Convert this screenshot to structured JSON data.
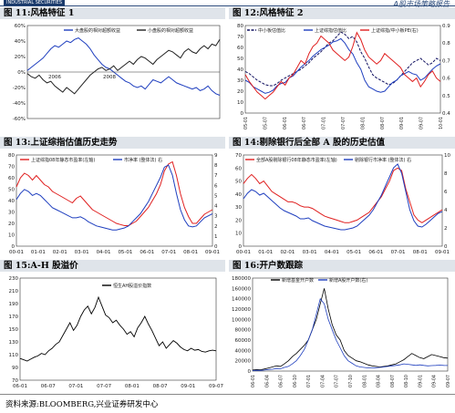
{
  "header": {
    "logo_text": "INDUSTRIAL SECURITIES",
    "report_title": "A股市场策略报告"
  },
  "figures": {
    "fig11": "图 11:风格特征 1",
    "fig12": "图 12:风格特征 2",
    "fig13": "图 13:上证综指估值历史走势",
    "fig14": "图 14:剔除银行后全部 A 股的历史估值",
    "fig15": "图 15:A-H 股溢价",
    "fig16": "图 16:开户数跟踪"
  },
  "footer": {
    "source": "资料来源:BLOOMBERG,兴业证券研发中心"
  },
  "chart_data": [
    {
      "id": "fig11",
      "type": "line",
      "series": [
        {
          "name": "大盘股的相对超额收益",
          "color": "#1f3fbf"
        },
        {
          "name": "小盘股的相对超额收益",
          "color": "#222222"
        }
      ],
      "x_ticks": [
        "2006",
        "2008"
      ],
      "y_ticks": [
        "60%",
        "40%",
        "20%",
        "0%",
        "-20%",
        "-40%",
        "-60%"
      ],
      "ylim": [
        -60,
        60
      ],
      "series_values": {
        "large": [
          2,
          6,
          10,
          14,
          18,
          24,
          30,
          34,
          32,
          36,
          40,
          38,
          42,
          44,
          40,
          36,
          30,
          22,
          16,
          10,
          6,
          4,
          0,
          -4,
          -8,
          -12,
          -14,
          -18,
          -20,
          -18,
          -22,
          -16,
          -10,
          -12,
          -14,
          -10,
          -6,
          -10,
          -14,
          -16,
          -18,
          -20,
          -22,
          -20,
          -24,
          -22,
          -18,
          -24,
          -28,
          -30
        ],
        "small": [
          -2,
          -6,
          -8,
          -4,
          -10,
          -14,
          -12,
          -18,
          -22,
          -26,
          -20,
          -24,
          -28,
          -22,
          -16,
          -10,
          -4,
          0,
          4,
          6,
          2,
          4,
          8,
          2,
          6,
          10,
          14,
          10,
          16,
          20,
          18,
          14,
          10,
          16,
          20,
          24,
          28,
          26,
          22,
          18,
          26,
          30,
          26,
          24,
          30,
          34,
          30,
          36,
          34,
          42
        ]
      }
    },
    {
      "id": "fig12",
      "type": "line",
      "series": [
        {
          "name": "中小板估值比",
          "color": "#101060"
        },
        {
          "name": "上证综指估值比",
          "color": "#1f3fbf"
        },
        {
          "name": "上证综指/中小板PE(右)",
          "color": "#e02020"
        }
      ],
      "x_ticks": [
        "05-01",
        "05-07",
        "06-01",
        "06-07",
        "07-01",
        "07-07",
        "08-01",
        "08-07",
        "09-01",
        "09-07",
        "10-01"
      ],
      "y_left": [
        "80",
        "70",
        "60",
        "50",
        "40",
        "30",
        "20",
        "10",
        "0"
      ],
      "y_right": [
        "0.9",
        "0.8",
        "0.7",
        "0.6",
        "0.5",
        "0.4"
      ],
      "ylim": [
        0,
        80
      ],
      "y2lim": [
        0.4,
        0.9
      ],
      "series_values": {
        "sme": [
          38,
          36,
          33,
          30,
          28,
          26,
          25,
          25,
          27,
          30,
          32,
          34,
          36,
          38,
          40,
          43,
          46,
          50,
          53,
          56,
          60,
          64,
          66,
          70,
          74,
          72,
          68,
          70,
          65,
          56,
          50,
          42,
          35,
          32,
          30,
          28,
          26,
          27,
          30,
          34,
          38,
          42,
          46,
          48,
          50,
          47,
          44,
          46,
          50,
          48
        ],
        "sh": [
          30,
          28,
          24,
          22,
          20,
          18,
          19,
          21,
          25,
          27,
          28,
          32,
          34,
          38,
          42,
          45,
          48,
          52,
          55,
          58,
          60,
          62,
          65,
          66,
          68,
          64,
          58,
          54,
          46,
          40,
          30,
          24,
          22,
          20,
          19,
          20,
          24,
          28,
          30,
          34,
          36,
          38,
          36,
          35,
          30,
          32,
          36,
          40,
          43,
          45
        ],
        "ratio_r": [
          0.62,
          0.58,
          0.55,
          0.52,
          0.5,
          0.48,
          0.5,
          0.52,
          0.55,
          0.58,
          0.56,
          0.6,
          0.62,
          0.66,
          0.7,
          0.68,
          0.74,
          0.78,
          0.8,
          0.84,
          0.82,
          0.8,
          0.76,
          0.74,
          0.72,
          0.7,
          0.72,
          0.78,
          0.86,
          0.82,
          0.76,
          0.72,
          0.7,
          0.68,
          0.7,
          0.74,
          0.72,
          0.7,
          0.68,
          0.66,
          0.62,
          0.6,
          0.58,
          0.6,
          0.55,
          0.58,
          0.62,
          0.64,
          0.6,
          0.58
        ]
      }
    },
    {
      "id": "fig13",
      "type": "line",
      "series": [
        {
          "name": "上证综指08年静态市盈率(左轴)",
          "color": "#e02020"
        },
        {
          "name": "市净率 (整体法) 右",
          "color": "#1f3fbf"
        }
      ],
      "x_ticks": [
        "00-01",
        "01-01",
        "02-01",
        "03-01",
        "04-01",
        "05-01",
        "06-01",
        "07-01",
        "08-01",
        "09-01"
      ],
      "y_left": [
        "80",
        "70",
        "60",
        "50",
        "40",
        "30",
        "20",
        "10",
        "0"
      ],
      "y_right": [
        "9",
        "8",
        "7",
        "6",
        "5",
        "4",
        "3",
        "2",
        "1",
        "0"
      ],
      "ylim": [
        0,
        80
      ],
      "y2lim": [
        0,
        9
      ],
      "series_values": {
        "pe": [
          52,
          60,
          64,
          62,
          58,
          62,
          58,
          54,
          52,
          48,
          46,
          44,
          42,
          40,
          38,
          42,
          44,
          40,
          36,
          32,
          30,
          28,
          26,
          24,
          22,
          20,
          19,
          18,
          18,
          20,
          22,
          26,
          30,
          34,
          40,
          46,
          54,
          66,
          72,
          74,
          62,
          46,
          34,
          26,
          20,
          20,
          24,
          28,
          30,
          32
        ],
        "pb": [
          4.6,
          5.2,
          5.6,
          5.4,
          5.0,
          5.2,
          5.0,
          4.6,
          4.2,
          3.8,
          3.6,
          3.4,
          3.2,
          3.0,
          2.8,
          2.8,
          2.9,
          2.7,
          2.4,
          2.2,
          2.0,
          1.9,
          1.8,
          1.7,
          1.6,
          1.6,
          1.7,
          1.8,
          2.0,
          2.4,
          2.8,
          3.2,
          3.8,
          4.4,
          5.2,
          6.0,
          6.8,
          7.8,
          8.0,
          7.0,
          5.2,
          3.6,
          2.6,
          2.0,
          1.9,
          2.0,
          2.4,
          2.8,
          3.0,
          3.2
        ]
      }
    },
    {
      "id": "fig14",
      "type": "line",
      "series": [
        {
          "name": "全部A股剔除银行08年静态市盈率(左轴)",
          "color": "#e02020"
        },
        {
          "name": "剔除银行市净率 (整体法) 右",
          "color": "#1f3fbf"
        }
      ],
      "x_ticks": [
        "00-01",
        "01-01",
        "02-01",
        "03-01",
        "04-01",
        "05-01",
        "06-01",
        "07-01",
        "08-01",
        "09-01"
      ],
      "y_left": [
        "70",
        "60",
        "50",
        "40",
        "30",
        "20",
        "10",
        "0"
      ],
      "y_right": [
        "10",
        "8",
        "6",
        "4",
        "2",
        "0"
      ],
      "ylim": [
        0,
        70
      ],
      "y2lim": [
        0,
        10
      ],
      "series_values": {
        "pe": [
          48,
          52,
          55,
          52,
          48,
          50,
          46,
          42,
          40,
          38,
          36,
          34,
          34,
          33,
          31,
          30,
          30,
          29,
          27,
          25,
          23,
          22,
          21,
          20,
          19,
          18,
          18,
          19,
          20,
          22,
          24,
          26,
          30,
          34,
          38,
          44,
          50,
          58,
          60,
          58,
          44,
          34,
          24,
          20,
          18,
          20,
          22,
          24,
          26,
          28
        ],
        "pb": [
          5.2,
          5.8,
          6.2,
          6.0,
          5.6,
          5.8,
          5.4,
          5.0,
          4.6,
          4.2,
          3.9,
          3.7,
          3.5,
          3.3,
          3.0,
          3.0,
          3.1,
          2.8,
          2.6,
          2.4,
          2.2,
          2.1,
          2.0,
          1.9,
          1.8,
          1.8,
          1.9,
          2.0,
          2.2,
          2.6,
          3.0,
          3.4,
          4.0,
          4.8,
          5.6,
          6.6,
          7.6,
          8.6,
          9.0,
          8.0,
          6.0,
          4.0,
          2.8,
          2.2,
          2.1,
          2.4,
          2.8,
          3.2,
          3.6,
          3.8
        ]
      }
    },
    {
      "id": "fig15",
      "type": "line",
      "series": [
        {
          "name": "恒生AH股溢价指数",
          "color": "#000000"
        }
      ],
      "x_ticks": [
        "06-01",
        "06-07",
        "07-01",
        "07-07",
        "08-01",
        "08-07",
        "09-01",
        "09-07"
      ],
      "y_ticks": [
        "230",
        "210",
        "190",
        "170",
        "150",
        "130",
        "110",
        "90",
        "70"
      ],
      "ylim": [
        70,
        230
      ],
      "values": [
        104,
        102,
        100,
        103,
        106,
        108,
        112,
        110,
        116,
        120,
        126,
        130,
        140,
        150,
        160,
        148,
        156,
        170,
        180,
        186,
        174,
        184,
        200,
        186,
        172,
        168,
        160,
        164,
        156,
        150,
        142,
        146,
        138,
        152,
        160,
        170,
        158,
        148,
        136,
        124,
        130,
        120,
        126,
        132,
        128,
        122,
        118,
        116,
        120,
        117,
        118,
        115,
        114,
        116,
        117,
        116
      ]
    },
    {
      "id": "fig16",
      "type": "line",
      "series": [
        {
          "name": "新增基金开户数",
          "color": "#000000"
        },
        {
          "name": "新增A股开户数(右)",
          "color": "#1f3fbf"
        }
      ],
      "x_ticks": [
        "06-01",
        "06-04",
        "06-07",
        "06-10",
        "07-01",
        "07-04",
        "07-07",
        "07-10",
        "08-01",
        "08-04",
        "08-07",
        "08-10",
        "09-01",
        "09-04",
        "09-07"
      ],
      "y_left": [
        "180000",
        "160000",
        "140000",
        "120000",
        "100000",
        "80000",
        "60000",
        "40000",
        "20000",
        "0"
      ],
      "ylim": [
        0,
        180000
      ],
      "values_fund": [
        2000,
        3000,
        2500,
        4000,
        6000,
        8000,
        10000,
        9000,
        14000,
        20000,
        28000,
        34000,
        42000,
        50000,
        60000,
        80000,
        100000,
        130000,
        160000,
        120000,
        90000,
        70000,
        60000,
        40000,
        30000,
        25000,
        20000,
        18000,
        15000,
        12000,
        10000,
        9000,
        8000,
        9000,
        10000,
        12000,
        14000,
        18000,
        22000,
        28000,
        34000,
        30000,
        26000,
        24000,
        28000,
        32000,
        30000,
        28000,
        26000,
        25000
      ],
      "values_a": [
        1000,
        1500,
        1200,
        2000,
        3000,
        3500,
        5000,
        4500,
        7000,
        9000,
        14000,
        20000,
        30000,
        42000,
        60000,
        80000,
        110000,
        140000,
        130000,
        100000,
        80000,
        60000,
        45000,
        30000,
        20000,
        15000,
        10000,
        8000,
        7000,
        6000,
        6000,
        6500,
        7000,
        8000,
        9000,
        10000,
        11000,
        12000,
        14000,
        13000,
        12000,
        11000,
        12000,
        11000,
        10000,
        10500,
        11000,
        11500,
        11000,
        10800
      ]
    }
  ]
}
